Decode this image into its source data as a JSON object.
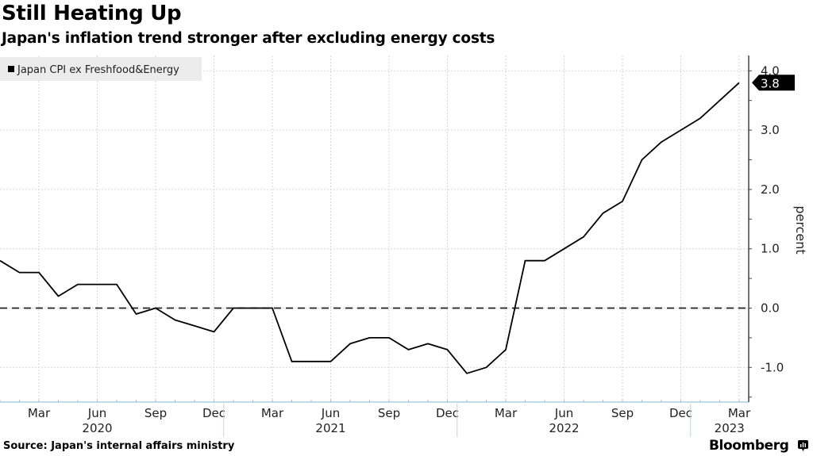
{
  "header": {
    "title": "Still Heating Up",
    "subtitle": "Japan's inflation trend stronger after excluding energy costs"
  },
  "footer": {
    "source": "Source: Japan's internal affairs ministry",
    "brand": "Bloomberg"
  },
  "chart_data": {
    "type": "line",
    "title": "Still Heating Up",
    "subtitle": "Japan's inflation trend stronger after excluding energy costs",
    "ylabel": "percent",
    "xlabel": "",
    "ylim": [
      -1.5,
      4.2
    ],
    "y_ticks": [
      {
        "value": 4.0,
        "label": "4.0"
      },
      {
        "value": 3.0,
        "label": "3.0"
      },
      {
        "value": 2.0,
        "label": "2.0"
      },
      {
        "value": 1.0,
        "label": "1.0"
      },
      {
        "value": 0.0,
        "label": "0.0"
      },
      {
        "value": -1.0,
        "label": "-1.0"
      }
    ],
    "x_month_ticks": [
      {
        "index": 2,
        "label": "Mar"
      },
      {
        "index": 5,
        "label": "Jun"
      },
      {
        "index": 8,
        "label": "Sep"
      },
      {
        "index": 11,
        "label": "Dec"
      },
      {
        "index": 14,
        "label": "Mar"
      },
      {
        "index": 17,
        "label": "Jun"
      },
      {
        "index": 20,
        "label": "Sep"
      },
      {
        "index": 23,
        "label": "Dec"
      },
      {
        "index": 26,
        "label": "Mar"
      },
      {
        "index": 29,
        "label": "Jun"
      },
      {
        "index": 32,
        "label": "Sep"
      },
      {
        "index": 35,
        "label": "Dec"
      },
      {
        "index": 38,
        "label": "Mar"
      }
    ],
    "x_year_labels": [
      {
        "index": 5,
        "label": "2020"
      },
      {
        "index": 17,
        "label": "2021"
      },
      {
        "index": 29,
        "label": "2022"
      },
      {
        "index": 37.5,
        "label": "2023"
      }
    ],
    "year_dividers": [
      11.5,
      23.5,
      35.5
    ],
    "grid": true,
    "zero_line": "dashed",
    "legend": {
      "position": "top-left",
      "entries": [
        "Japan CPI ex Freshfood&Energy"
      ]
    },
    "last_value_label": "3.8",
    "series": [
      {
        "name": "Japan CPI ex Freshfood&Energy",
        "color": "#000000",
        "x": [
          "2020-01",
          "2020-02",
          "2020-03",
          "2020-04",
          "2020-05",
          "2020-06",
          "2020-07",
          "2020-08",
          "2020-09",
          "2020-10",
          "2020-11",
          "2020-12",
          "2021-01",
          "2021-02",
          "2021-03",
          "2021-04",
          "2021-05",
          "2021-06",
          "2021-07",
          "2021-08",
          "2021-09",
          "2021-10",
          "2021-11",
          "2021-12",
          "2022-01",
          "2022-02",
          "2022-03",
          "2022-04",
          "2022-05",
          "2022-06",
          "2022-07",
          "2022-08",
          "2022-09",
          "2022-10",
          "2022-11",
          "2022-12",
          "2023-01",
          "2023-02",
          "2023-03"
        ],
        "values": [
          0.8,
          0.6,
          0.6,
          0.2,
          0.4,
          0.4,
          0.4,
          -0.1,
          0.0,
          -0.2,
          -0.3,
          -0.4,
          0.0,
          0.0,
          0.0,
          -0.9,
          -0.9,
          -0.9,
          -0.6,
          -0.5,
          -0.5,
          -0.7,
          -0.6,
          -0.7,
          -1.1,
          -1.0,
          -0.7,
          0.8,
          0.8,
          1.0,
          1.2,
          1.6,
          1.8,
          2.5,
          2.8,
          3.0,
          3.2,
          3.5,
          3.8
        ]
      }
    ]
  }
}
